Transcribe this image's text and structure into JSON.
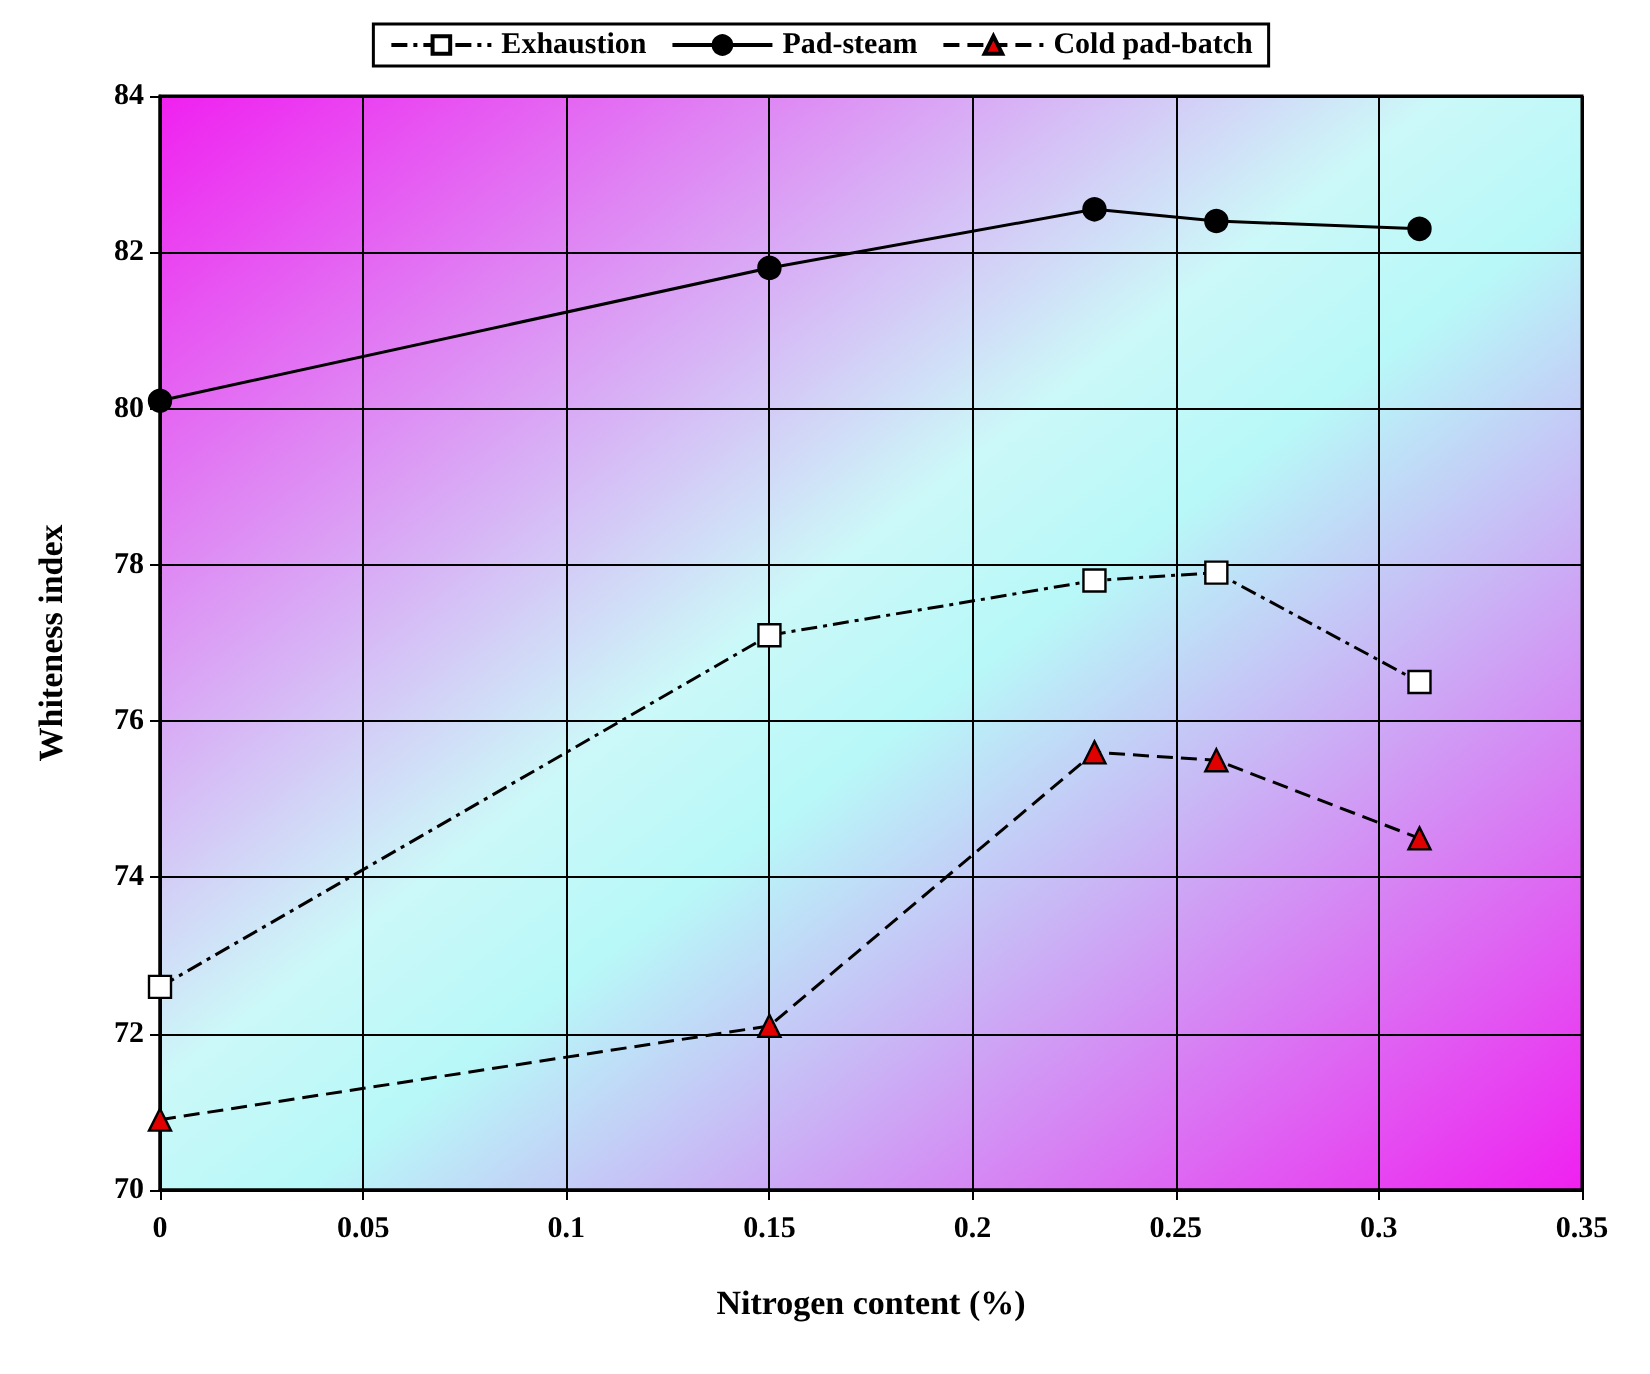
{
  "chart_data": {
    "type": "line",
    "xlabel": "Nitrogen content (%)",
    "ylabel": "Whiteness index",
    "x": [
      0,
      0.15,
      0.23,
      0.26,
      0.31
    ],
    "series": [
      {
        "name": "Exhaustion",
        "color": "#ffffff",
        "marker": "square",
        "line_style": "dashdot",
        "values": [
          72.6,
          77.1,
          77.8,
          77.9,
          76.5
        ]
      },
      {
        "name": "Pad-steam",
        "color": "#000000",
        "marker": "circle",
        "line_style": "solid",
        "values": [
          80.1,
          81.8,
          82.55,
          82.4,
          82.3
        ]
      },
      {
        "name": "Cold pad-batch",
        "color": "#e00000",
        "marker": "triangle",
        "line_style": "dashed",
        "values": [
          70.9,
          72.1,
          75.6,
          75.5,
          74.5
        ]
      }
    ],
    "xlim": [
      0,
      0.35
    ],
    "xticks": [
      0,
      0.05,
      0.1,
      0.15,
      0.2,
      0.25,
      0.3,
      0.35
    ],
    "ylim": [
      70,
      84
    ],
    "yticks": [
      70,
      72,
      74,
      76,
      78,
      80,
      82,
      84
    ],
    "grid": true,
    "legend": "top"
  }
}
